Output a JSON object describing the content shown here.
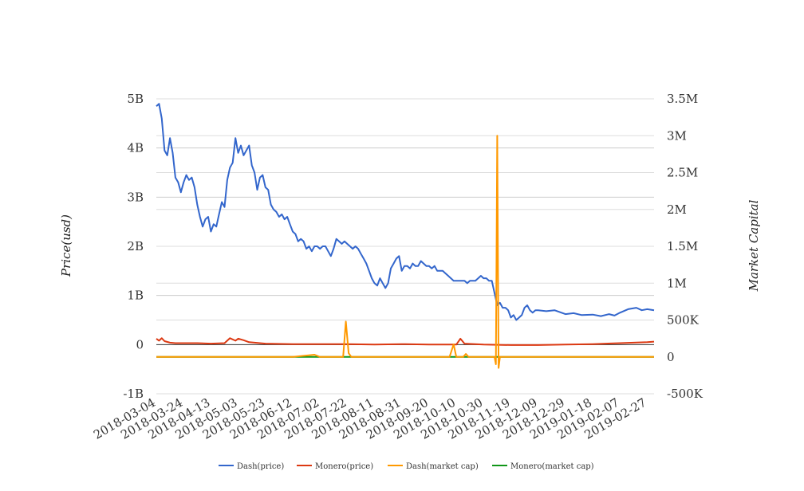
{
  "chart_data": {
    "type": "line",
    "title": "",
    "ylabel_left": "Price(usd)",
    "ylabel_right": "Market Capital",
    "x_tick_labels": [
      "2018-03-04",
      "2018-03-24",
      "2018-04-13",
      "2018-05-03",
      "2018-05-23",
      "2018-06-12",
      "2018-07-02",
      "2018-07-22",
      "2018-08-11",
      "2018-08-31",
      "2018-09-20",
      "2018-10-10",
      "2018-10-30",
      "2018-11-19",
      "2018-12-09",
      "2018-12-29",
      "2019-01-18",
      "2019-02-07",
      "2019-02-27"
    ],
    "x_range": [
      "2018-03-04",
      "2019-03-04"
    ],
    "y_left": {
      "min": -1000000000,
      "max": 5000000000,
      "ticks": [
        -1000000000,
        0,
        1000000000,
        2000000000,
        3000000000,
        4000000000,
        5000000000
      ],
      "tick_labels": [
        "-1B",
        "0",
        "1B",
        "2B",
        "3B",
        "4B",
        "5B"
      ]
    },
    "y_right": {
      "min": -500000,
      "max": 3500000,
      "ticks": [
        -500000,
        0,
        500000,
        1000000,
        1500000,
        2000000,
        2500000,
        3000000,
        3500000
      ],
      "tick_labels": [
        "-500K",
        "0",
        "500K",
        "1M",
        "1.5M",
        "2M",
        "2.5M",
        "3M",
        "3.5M"
      ]
    },
    "grid": true,
    "legend_position": "bottom-center",
    "series": [
      {
        "name": "Dash(price)",
        "axis": "left",
        "color": "#3366cc",
        "points": [
          [
            "2018-03-04",
            4850000000
          ],
          [
            "2018-03-06",
            4900000000
          ],
          [
            "2018-03-08",
            4600000000
          ],
          [
            "2018-03-10",
            3950000000
          ],
          [
            "2018-03-12",
            3850000000
          ],
          [
            "2018-03-14",
            4200000000
          ],
          [
            "2018-03-16",
            3900000000
          ],
          [
            "2018-03-18",
            3400000000
          ],
          [
            "2018-03-20",
            3300000000
          ],
          [
            "2018-03-22",
            3100000000
          ],
          [
            "2018-03-24",
            3300000000
          ],
          [
            "2018-03-26",
            3450000000
          ],
          [
            "2018-03-28",
            3350000000
          ],
          [
            "2018-03-30",
            3400000000
          ],
          [
            "2018-04-01",
            3200000000
          ],
          [
            "2018-04-03",
            2850000000
          ],
          [
            "2018-04-05",
            2600000000
          ],
          [
            "2018-04-07",
            2400000000
          ],
          [
            "2018-04-09",
            2550000000
          ],
          [
            "2018-04-11",
            2600000000
          ],
          [
            "2018-04-13",
            2300000000
          ],
          [
            "2018-04-15",
            2450000000
          ],
          [
            "2018-04-17",
            2400000000
          ],
          [
            "2018-04-19",
            2650000000
          ],
          [
            "2018-04-21",
            2900000000
          ],
          [
            "2018-04-23",
            2800000000
          ],
          [
            "2018-04-25",
            3350000000
          ],
          [
            "2018-04-27",
            3600000000
          ],
          [
            "2018-04-29",
            3700000000
          ],
          [
            "2018-05-01",
            4200000000
          ],
          [
            "2018-05-03",
            3900000000
          ],
          [
            "2018-05-05",
            4050000000
          ],
          [
            "2018-05-07",
            3850000000
          ],
          [
            "2018-05-09",
            3950000000
          ],
          [
            "2018-05-11",
            4050000000
          ],
          [
            "2018-05-13",
            3650000000
          ],
          [
            "2018-05-15",
            3500000000
          ],
          [
            "2018-05-17",
            3150000000
          ],
          [
            "2018-05-19",
            3400000000
          ],
          [
            "2018-05-21",
            3450000000
          ],
          [
            "2018-05-23",
            3200000000
          ],
          [
            "2018-05-25",
            3150000000
          ],
          [
            "2018-05-27",
            2850000000
          ],
          [
            "2018-05-29",
            2750000000
          ],
          [
            "2018-05-31",
            2700000000
          ],
          [
            "2018-06-02",
            2600000000
          ],
          [
            "2018-06-04",
            2650000000
          ],
          [
            "2018-06-06",
            2550000000
          ],
          [
            "2018-06-08",
            2600000000
          ],
          [
            "2018-06-10",
            2450000000
          ],
          [
            "2018-06-12",
            2300000000
          ],
          [
            "2018-06-14",
            2250000000
          ],
          [
            "2018-06-16",
            2100000000
          ],
          [
            "2018-06-18",
            2150000000
          ],
          [
            "2018-06-20",
            2100000000
          ],
          [
            "2018-06-22",
            1950000000
          ],
          [
            "2018-06-24",
            2000000000
          ],
          [
            "2018-06-26",
            1900000000
          ],
          [
            "2018-06-28",
            2000000000
          ],
          [
            "2018-06-30",
            2000000000
          ],
          [
            "2018-07-02",
            1950000000
          ],
          [
            "2018-07-04",
            2000000000
          ],
          [
            "2018-07-06",
            2000000000
          ],
          [
            "2018-07-08",
            1900000000
          ],
          [
            "2018-07-10",
            1800000000
          ],
          [
            "2018-07-12",
            1950000000
          ],
          [
            "2018-07-14",
            2150000000
          ],
          [
            "2018-07-16",
            2100000000
          ],
          [
            "2018-07-18",
            2050000000
          ],
          [
            "2018-07-20",
            2100000000
          ],
          [
            "2018-07-22",
            2050000000
          ],
          [
            "2018-07-24",
            2000000000
          ],
          [
            "2018-07-26",
            1950000000
          ],
          [
            "2018-07-28",
            2000000000
          ],
          [
            "2018-07-30",
            1950000000
          ],
          [
            "2018-08-01",
            1850000000
          ],
          [
            "2018-08-03",
            1750000000
          ],
          [
            "2018-08-05",
            1650000000
          ],
          [
            "2018-08-07",
            1500000000
          ],
          [
            "2018-08-09",
            1350000000
          ],
          [
            "2018-08-11",
            1250000000
          ],
          [
            "2018-08-13",
            1200000000
          ],
          [
            "2018-08-15",
            1350000000
          ],
          [
            "2018-08-17",
            1250000000
          ],
          [
            "2018-08-19",
            1150000000
          ],
          [
            "2018-08-21",
            1250000000
          ],
          [
            "2018-08-23",
            1550000000
          ],
          [
            "2018-08-25",
            1650000000
          ],
          [
            "2018-08-27",
            1750000000
          ],
          [
            "2018-08-29",
            1800000000
          ],
          [
            "2018-08-31",
            1500000000
          ],
          [
            "2018-09-02",
            1600000000
          ],
          [
            "2018-09-04",
            1600000000
          ],
          [
            "2018-09-06",
            1550000000
          ],
          [
            "2018-09-08",
            1650000000
          ],
          [
            "2018-09-10",
            1600000000
          ],
          [
            "2018-09-12",
            1600000000
          ],
          [
            "2018-09-14",
            1700000000
          ],
          [
            "2018-09-16",
            1650000000
          ],
          [
            "2018-09-18",
            1600000000
          ],
          [
            "2018-09-20",
            1600000000
          ],
          [
            "2018-09-22",
            1550000000
          ],
          [
            "2018-09-24",
            1600000000
          ],
          [
            "2018-09-26",
            1500000000
          ],
          [
            "2018-09-28",
            1500000000
          ],
          [
            "2018-09-30",
            1500000000
          ],
          [
            "2018-10-02",
            1450000000
          ],
          [
            "2018-10-04",
            1400000000
          ],
          [
            "2018-10-06",
            1350000000
          ],
          [
            "2018-10-08",
            1300000000
          ],
          [
            "2018-10-10",
            1300000000
          ],
          [
            "2018-10-12",
            1300000000
          ],
          [
            "2018-10-14",
            1300000000
          ],
          [
            "2018-10-16",
            1300000000
          ],
          [
            "2018-10-18",
            1250000000
          ],
          [
            "2018-10-20",
            1300000000
          ],
          [
            "2018-10-22",
            1300000000
          ],
          [
            "2018-10-24",
            1300000000
          ],
          [
            "2018-10-26",
            1350000000
          ],
          [
            "2018-10-28",
            1400000000
          ],
          [
            "2018-10-30",
            1350000000
          ],
          [
            "2018-11-01",
            1350000000
          ],
          [
            "2018-11-03",
            1300000000
          ],
          [
            "2018-11-05",
            1300000000
          ],
          [
            "2018-11-07",
            1050000000
          ],
          [
            "2018-11-09",
            800000000
          ],
          [
            "2018-11-11",
            850000000
          ],
          [
            "2018-11-13",
            750000000
          ],
          [
            "2018-11-15",
            750000000
          ],
          [
            "2018-11-17",
            700000000
          ],
          [
            "2018-11-19",
            550000000
          ],
          [
            "2018-11-21",
            600000000
          ],
          [
            "2018-11-23",
            500000000
          ],
          [
            "2018-11-25",
            550000000
          ],
          [
            "2018-11-27",
            600000000
          ],
          [
            "2018-11-29",
            750000000
          ],
          [
            "2018-12-01",
            800000000
          ],
          [
            "2018-12-03",
            700000000
          ],
          [
            "2018-12-05",
            650000000
          ],
          [
            "2018-12-07",
            700000000
          ],
          [
            "2018-12-09",
            700000000
          ],
          [
            "2018-12-15",
            680000000
          ],
          [
            "2018-12-21",
            700000000
          ],
          [
            "2018-12-29",
            620000000
          ],
          [
            "2019-01-04",
            640000000
          ],
          [
            "2019-01-10",
            600000000
          ],
          [
            "2019-01-18",
            610000000
          ],
          [
            "2019-01-24",
            580000000
          ],
          [
            "2019-01-30",
            620000000
          ],
          [
            "2019-02-03",
            590000000
          ],
          [
            "2019-02-07",
            650000000
          ],
          [
            "2019-02-13",
            720000000
          ],
          [
            "2019-02-19",
            750000000
          ],
          [
            "2019-02-23",
            700000000
          ],
          [
            "2019-02-27",
            720000000
          ],
          [
            "2019-03-04",
            700000000
          ]
        ]
      },
      {
        "name": "Monero(price)",
        "axis": "left",
        "color": "#dc3912",
        "points": [
          [
            "2018-03-04",
            120000000
          ],
          [
            "2018-03-06",
            80000000
          ],
          [
            "2018-03-08",
            130000000
          ],
          [
            "2018-03-10",
            70000000
          ],
          [
            "2018-03-14",
            40000000
          ],
          [
            "2018-03-18",
            30000000
          ],
          [
            "2018-03-24",
            30000000
          ],
          [
            "2018-04-03",
            30000000
          ],
          [
            "2018-04-13",
            20000000
          ],
          [
            "2018-04-23",
            30000000
          ],
          [
            "2018-04-27",
            130000000
          ],
          [
            "2018-05-01",
            80000000
          ],
          [
            "2018-05-03",
            120000000
          ],
          [
            "2018-05-07",
            90000000
          ],
          [
            "2018-05-11",
            50000000
          ],
          [
            "2018-05-23",
            20000000
          ],
          [
            "2018-06-12",
            10000000
          ],
          [
            "2018-07-02",
            10000000
          ],
          [
            "2018-07-22",
            10000000
          ],
          [
            "2018-08-11",
            0
          ],
          [
            "2018-08-31",
            10000000
          ],
          [
            "2018-09-20",
            0
          ],
          [
            "2018-10-10",
            0
          ],
          [
            "2018-10-13",
            120000000
          ],
          [
            "2018-10-16",
            20000000
          ],
          [
            "2018-10-30",
            0
          ],
          [
            "2018-11-19",
            -10000000
          ],
          [
            "2018-12-09",
            -10000000
          ],
          [
            "2018-12-29",
            0
          ],
          [
            "2019-01-18",
            10000000
          ],
          [
            "2019-02-07",
            30000000
          ],
          [
            "2019-02-27",
            50000000
          ],
          [
            "2019-03-04",
            60000000
          ]
        ]
      },
      {
        "name": "Dash(market cap)",
        "axis": "right",
        "color": "#ff9900",
        "points": [
          [
            "2018-03-04",
            0
          ],
          [
            "2018-06-12",
            0
          ],
          [
            "2018-06-28",
            30000
          ],
          [
            "2018-07-02",
            0
          ],
          [
            "2018-07-19",
            0
          ],
          [
            "2018-07-21",
            480000
          ],
          [
            "2018-07-23",
            50000
          ],
          [
            "2018-07-25",
            0
          ],
          [
            "2018-10-05",
            0
          ],
          [
            "2018-10-08",
            170000
          ],
          [
            "2018-10-10",
            0
          ],
          [
            "2018-10-15",
            0
          ],
          [
            "2018-10-17",
            40000
          ],
          [
            "2018-10-19",
            0
          ],
          [
            "2018-11-07",
            0
          ],
          [
            "2018-11-08",
            -100000
          ],
          [
            "2018-11-09",
            3000000
          ],
          [
            "2018-11-10",
            -150000
          ],
          [
            "2018-11-11",
            0
          ],
          [
            "2019-03-04",
            0
          ]
        ]
      },
      {
        "name": "Monero(market cap)",
        "axis": "right",
        "color": "#109618",
        "points": [
          [
            "2018-03-04",
            0
          ],
          [
            "2019-03-04",
            0
          ]
        ]
      }
    ]
  }
}
